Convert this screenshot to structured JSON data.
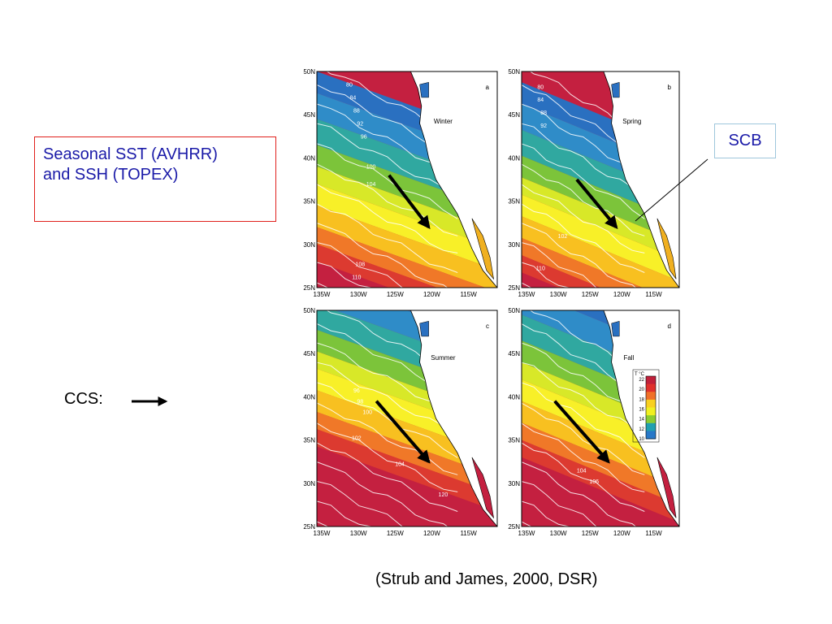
{
  "slide": {
    "title_line1": "Seasonal SST (AVHRR)",
    "title_line2": "and SSH (TOPEX)",
    "scb_label": "SCB",
    "ccs_label": "CCS:",
    "citation": "(Strub and James, 2000, DSR)"
  },
  "figure": {
    "lat_labels": [
      "50N",
      "45N",
      "40N",
      "35N",
      "30N",
      "25N"
    ],
    "lon_labels": [
      "135W",
      "130W",
      "125W",
      "120W",
      "115W"
    ],
    "panels": [
      {
        "letter": "a",
        "season": "Winter",
        "contours": [
          "80",
          "84",
          "88",
          "92",
          "96",
          "100",
          "104",
          "108",
          "110"
        ]
      },
      {
        "letter": "b",
        "season": "Spring",
        "contours": [
          "80",
          "84",
          "88",
          "92",
          "102",
          "110"
        ]
      },
      {
        "letter": "c",
        "season": "Summer",
        "contours": [
          "96",
          "98",
          "100",
          "102",
          "104",
          "120"
        ]
      },
      {
        "letter": "d",
        "season": "Fall",
        "contours": [
          "104",
          "106"
        ]
      }
    ],
    "colorbar": {
      "unit": "T °C",
      "ticks": [
        "22",
        "20",
        "18",
        "16",
        "14",
        "12",
        "10"
      ],
      "colors": [
        "#c0203a",
        "#e0302c",
        "#f07028",
        "#f8d020",
        "#f0f020",
        "#8ccc30",
        "#20a0b0",
        "#2878c8"
      ]
    }
  }
}
